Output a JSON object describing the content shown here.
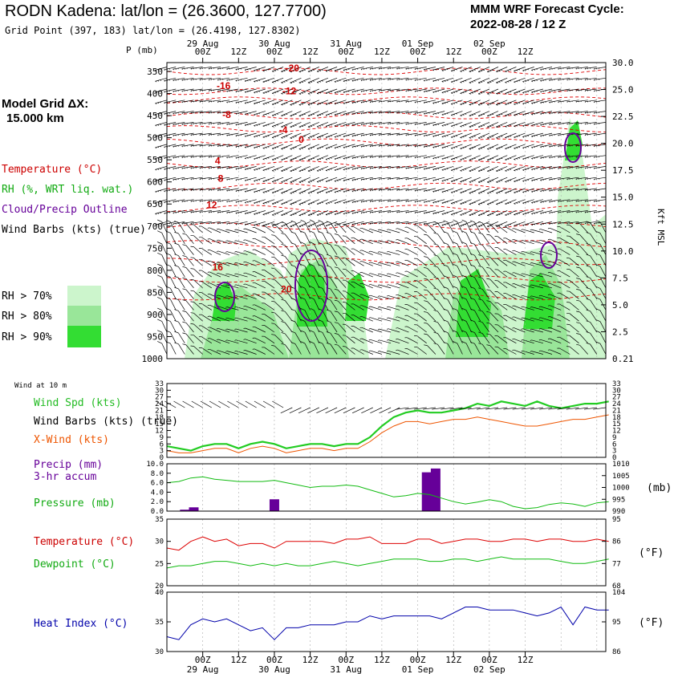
{
  "header": {
    "title": "RODN Kadena:  lat/lon = (26.3600, 127.7700)",
    "grid_point": "Grid Point (397, 183) lat/lon = (26.4198, 127.8302)",
    "cycle_line1": "MMM WRF Forecast Cycle:",
    "cycle_line2": "2022-08-28 / 12  Z"
  },
  "legend": {
    "model_grid_line1": "Model Grid ΔX:",
    "model_grid_line2": "15.000 km",
    "temperature": "Temperature (°C)",
    "rh": "RH (%, WRT liq. wat.)",
    "cloud": "Cloud/Precip Outline",
    "wind": "Wind Barbs (kts) (true)",
    "rh_levels": [
      "RH > 70%",
      "RH > 80%",
      "RH > 90%"
    ],
    "rh_colors": [
      "#ccf5cc",
      "#99e699",
      "#33dd33"
    ]
  },
  "colors": {
    "temperature": "#dd0000",
    "wind_speed": "#22cc22",
    "xwind": "#ee5500",
    "precip": "#660099",
    "pressure": "#11bb11",
    "dewpoint": "#11bb11",
    "heat_index": "#0000aa"
  },
  "time_axis": {
    "hour_labels": [
      "00Z",
      "12Z",
      "00Z",
      "12Z",
      "00Z",
      "12Z",
      "00Z",
      "12Z",
      "00Z",
      "12Z"
    ],
    "day_labels": [
      "29 Aug",
      "30 Aug",
      "31 Aug",
      "01 Sep",
      "02 Sep"
    ]
  },
  "chart_data": [
    {
      "type": "area",
      "name": "cross-section",
      "ylabel": "P (mb)",
      "y_units_right": "Kft MSL",
      "y_ticks": [
        350,
        400,
        450,
        500,
        550,
        600,
        650,
        700,
        750,
        800,
        850,
        900,
        950,
        1000
      ],
      "y_ticks_right": [
        "30.0",
        "25.0",
        "22.5",
        "20.0",
        "17.5",
        "15.0",
        "12.5",
        "10.0",
        "7.5",
        "5.0",
        "2.5",
        "0.21"
      ],
      "ylim": [
        330,
        1000
      ],
      "isotherm_labels": [
        {
          "t": 42,
          "p": 350,
          "text": "-20"
        },
        {
          "t": 19,
          "p": 390,
          "text": "-16"
        },
        {
          "t": 41,
          "p": 402,
          "text": "-12"
        },
        {
          "t": 20,
          "p": 455,
          "text": "-8"
        },
        {
          "t": 39,
          "p": 490,
          "text": "-4"
        },
        {
          "t": 45,
          "p": 512,
          "text": "0"
        },
        {
          "t": 17,
          "p": 560,
          "text": "4"
        },
        {
          "t": 18,
          "p": 600,
          "text": "8"
        },
        {
          "t": 15,
          "p": 660,
          "text": "12"
        },
        {
          "t": 17,
          "p": 800,
          "text": "16"
        },
        {
          "t": 40,
          "p": 850,
          "text": "20"
        }
      ]
    },
    {
      "type": "line",
      "name": "wind",
      "title": "Wind at 10 m",
      "ylim": [
        0,
        33
      ],
      "y_ticks": [
        0,
        3,
        6,
        9,
        12,
        15,
        18,
        21,
        24,
        27,
        30,
        33
      ],
      "series": [
        {
          "name": "Wind Spd (kts)",
          "t": [
            0,
            4,
            8,
            12,
            16,
            20,
            24,
            28,
            32,
            36,
            40,
            44,
            48,
            52,
            56,
            60,
            64,
            68,
            72,
            76,
            80,
            84,
            88,
            92,
            96,
            100,
            104,
            108,
            112,
            116,
            120,
            124,
            128,
            132,
            136,
            140,
            144,
            148
          ],
          "values": [
            5,
            4,
            3,
            5,
            6,
            6,
            4,
            6,
            7,
            6,
            4,
            5,
            6,
            6,
            5,
            6,
            6,
            9,
            14,
            18,
            20,
            21,
            20,
            20,
            21,
            22,
            24,
            23,
            25,
            24,
            23,
            25,
            23,
            22,
            23,
            24,
            24,
            25
          ]
        },
        {
          "name": "X-Wind (kts)",
          "t": [
            0,
            4,
            8,
            12,
            16,
            20,
            24,
            28,
            32,
            36,
            40,
            44,
            48,
            52,
            56,
            60,
            64,
            68,
            72,
            76,
            80,
            84,
            88,
            92,
            96,
            100,
            104,
            108,
            112,
            116,
            120,
            124,
            128,
            132,
            136,
            140,
            144,
            148
          ],
          "values": [
            3,
            2,
            2,
            3,
            4,
            4,
            2,
            4,
            5,
            4,
            2,
            3,
            4,
            4,
            3,
            4,
            4,
            7,
            11,
            14,
            16,
            16,
            15,
            16,
            17,
            17,
            18,
            17,
            16,
            15,
            14,
            14,
            15,
            16,
            17,
            17,
            18,
            19
          ]
        }
      ]
    },
    {
      "type": "bar",
      "name": "precip-pressure",
      "precip_label": "Precip (mm)",
      "precip_sublabel": "3-hr accum",
      "pressure_label": "Pressure (mb)",
      "ylim": [
        0,
        10
      ],
      "y_ticks": [
        "0.0",
        "2.0",
        "4.0",
        "6.0",
        "8.0",
        "10.0"
      ],
      "ylim_right": [
        990,
        1010
      ],
      "y_ticks_right": [
        "990",
        "995",
        "1000",
        "1005",
        "1010"
      ],
      "right_units": "(mb)",
      "precip": {
        "t": [
          6,
          9,
          36,
          87,
          90
        ],
        "values": [
          0.3,
          0.8,
          2.5,
          8.2,
          9.0
        ]
      },
      "pressure": {
        "t": [
          0,
          4,
          8,
          12,
          16,
          20,
          24,
          28,
          32,
          36,
          40,
          44,
          48,
          52,
          56,
          60,
          64,
          68,
          72,
          76,
          80,
          84,
          88,
          92,
          96,
          100,
          104,
          108,
          112,
          116,
          120,
          124,
          128,
          132,
          136,
          140,
          144,
          148
        ],
        "values": [
          1002,
          1002.5,
          1004,
          1004.5,
          1003.5,
          1003,
          1002.5,
          1002.5,
          1002.5,
          1003,
          1002,
          1001,
          1000,
          1000.5,
          1000.5,
          1001,
          1000.5,
          999,
          997.5,
          996,
          996.5,
          997.5,
          997,
          995.5,
          994,
          993,
          993.8,
          994.8,
          994,
          992,
          991,
          991.5,
          992.8,
          993.5,
          993,
          992,
          993.5,
          994
        ]
      }
    },
    {
      "type": "line",
      "name": "temp-dewpoint",
      "ylim": [
        20,
        35
      ],
      "y_ticks": [
        20,
        25,
        30,
        35
      ],
      "y_ticks_right": [
        "68",
        "77",
        "86",
        "95"
      ],
      "right_units": "(°F)",
      "series": [
        {
          "name": "Temperature (°C)",
          "t": [
            0,
            4,
            8,
            12,
            16,
            20,
            24,
            28,
            32,
            36,
            40,
            44,
            48,
            52,
            56,
            60,
            64,
            68,
            72,
            76,
            80,
            84,
            88,
            92,
            96,
            100,
            104,
            108,
            112,
            116,
            120,
            124,
            128,
            132,
            136,
            140,
            144,
            148
          ],
          "values": [
            28.5,
            28,
            30,
            31,
            30,
            30.5,
            29,
            29.5,
            29.5,
            28.5,
            30,
            30,
            30,
            30,
            29.5,
            30.5,
            30.5,
            31,
            29.5,
            29.5,
            29.5,
            30.5,
            30.5,
            29.5,
            30,
            30.5,
            30.5,
            30,
            30,
            30.5,
            30.5,
            30,
            30.5,
            30.5,
            30,
            30,
            30.5,
            30
          ]
        },
        {
          "name": "Dewpoint (°C)",
          "t": [
            0,
            4,
            8,
            12,
            16,
            20,
            24,
            28,
            32,
            36,
            40,
            44,
            48,
            52,
            56,
            60,
            64,
            68,
            72,
            76,
            80,
            84,
            88,
            92,
            96,
            100,
            104,
            108,
            112,
            116,
            120,
            124,
            128,
            132,
            136,
            140,
            144,
            148
          ],
          "values": [
            24,
            24.5,
            24.5,
            25,
            25.5,
            25.5,
            25,
            24.5,
            25,
            24.5,
            25,
            24.5,
            24.5,
            25,
            25.5,
            25,
            24.5,
            25,
            25.5,
            26,
            26,
            26,
            25.5,
            25.5,
            26,
            26,
            25.5,
            26,
            26.5,
            26,
            26,
            26,
            26,
            25.5,
            25,
            25,
            25.5,
            26
          ]
        }
      ]
    },
    {
      "type": "line",
      "name": "heat-index",
      "ylim": [
        30,
        40
      ],
      "y_ticks": [
        30,
        35,
        40
      ],
      "y_ticks_right": [
        "86",
        "95",
        "104"
      ],
      "right_units": "(°F)",
      "series": [
        {
          "name": "Heat Index (°C)",
          "t": [
            0,
            4,
            8,
            12,
            16,
            20,
            24,
            28,
            32,
            36,
            40,
            44,
            48,
            52,
            56,
            60,
            64,
            68,
            72,
            76,
            80,
            84,
            88,
            92,
            96,
            100,
            104,
            108,
            112,
            116,
            120,
            124,
            128,
            132,
            136,
            140,
            144,
            148
          ],
          "values": [
            32.5,
            32,
            34.5,
            35.5,
            35,
            35.5,
            34.5,
            33.5,
            34,
            32,
            34,
            34,
            34.5,
            34.5,
            34.5,
            35,
            35,
            36,
            35.5,
            36,
            36,
            36,
            36,
            35.5,
            36.5,
            37.5,
            37.5,
            37,
            37,
            37,
            36.5,
            36,
            36.5,
            37.5,
            34.5,
            37.5,
            37,
            37
          ]
        }
      ]
    }
  ]
}
